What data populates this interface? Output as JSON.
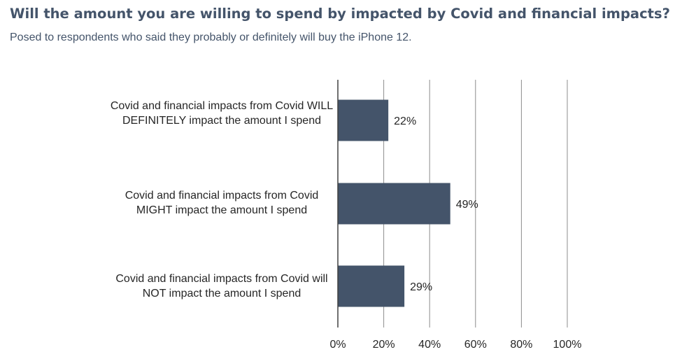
{
  "title": "Will the amount you are willing to spend by impacted by Covid and financial impacts?",
  "subtitle": "Posed to respondents who said they probably or definitely will buy the iPhone 12.",
  "colors": {
    "bar": "#44546a",
    "title": "#44546a",
    "grid": "#8c8c8c",
    "text": "#262626"
  },
  "chart_data": {
    "type": "bar",
    "orientation": "horizontal",
    "categories": [
      "Covid and financial impacts from Covid WILL DEFINITELY impact the amount I spend",
      "Covid and financial impacts from Covid MIGHT impact the amount I spend",
      "Covid and financial impacts from Covid will NOT impact the amount I spend"
    ],
    "values": [
      22,
      49,
      29
    ],
    "data_labels": [
      "22%",
      "49%",
      "29%"
    ],
    "xlim": [
      0,
      100
    ],
    "x_ticks": [
      0,
      20,
      40,
      60,
      80,
      100
    ],
    "x_tick_labels": [
      "0%",
      "20%",
      "40%",
      "60%",
      "80%",
      "100%"
    ],
    "grid": true,
    "legend": "none"
  }
}
